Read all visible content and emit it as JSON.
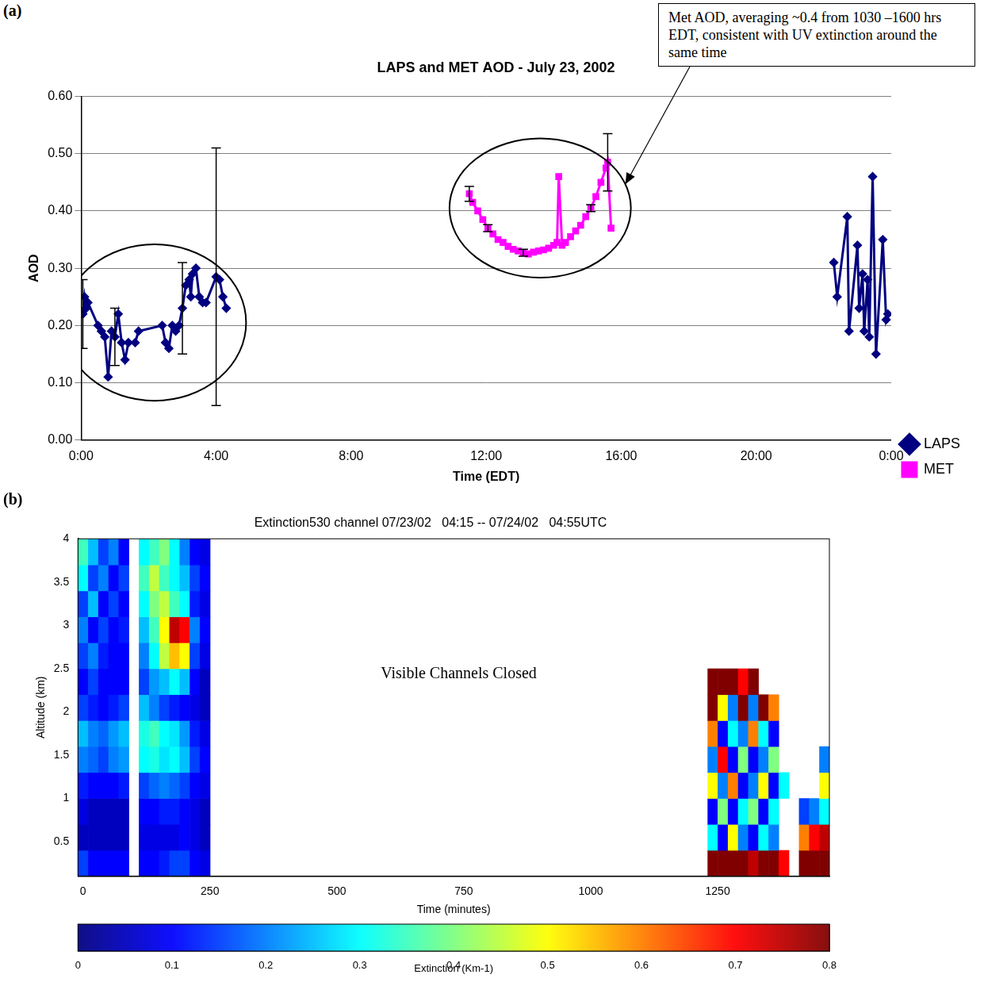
{
  "chart_data": [
    {
      "panel_label": "(a)",
      "type": "line",
      "title": "LAPS and MET AOD - July 23, 2002",
      "x_label": "Time (EDT)",
      "y_label": "AOD",
      "xlim": [
        0,
        24
      ],
      "xticks": [
        {
          "value": 0,
          "label": "0:00"
        },
        {
          "value": 4,
          "label": "4:00"
        },
        {
          "value": 8,
          "label": "8:00"
        },
        {
          "value": 12,
          "label": "12:00"
        },
        {
          "value": 16,
          "label": "16:00"
        },
        {
          "value": 20,
          "label": "20:00"
        },
        {
          "value": 24,
          "label": "0:00"
        }
      ],
      "ylim": [
        0,
        0.6
      ],
      "yticks": [
        {
          "value": 0,
          "label": "0.00"
        },
        {
          "value": 0.1,
          "label": "0.10"
        },
        {
          "value": 0.2,
          "label": "0.20"
        },
        {
          "value": 0.3,
          "label": "0.30"
        },
        {
          "value": 0.4,
          "label": "0.40"
        },
        {
          "value": 0.5,
          "label": "0.50"
        },
        {
          "value": 0.6,
          "label": "0.60"
        }
      ],
      "grid": "y",
      "legend": "right",
      "annotations": [
        "Met AOD, averaging ~0.4 from 1030 –1600 hrs EDT, consistent with UV extinction around the same time"
      ],
      "series": [
        {
          "name": "LAPS",
          "color": "#000080",
          "marker": "diamond",
          "x": [
            0.05,
            0.1,
            0.15,
            0.2,
            0.5,
            0.6,
            0.7,
            0.8,
            0.9,
            1.0,
            1.1,
            1.2,
            1.3,
            1.4,
            1.6,
            1.7,
            2.4,
            2.5,
            2.6,
            2.7,
            2.8,
            2.9,
            3.0,
            3.1,
            3.2,
            3.25,
            3.3,
            3.4,
            3.5,
            3.6,
            3.7,
            4.0,
            4.1,
            4.2,
            4.3,
            null,
            22.3,
            22.4,
            22.7,
            22.75,
            23.0,
            23.05,
            23.15,
            23.2,
            23.3,
            23.35,
            23.45,
            23.55,
            23.75,
            23.85,
            23.9
          ],
          "values": [
            0.22,
            0.25,
            0.23,
            0.24,
            0.2,
            0.19,
            0.18,
            0.11,
            0.19,
            0.18,
            0.22,
            0.17,
            0.14,
            0.17,
            0.17,
            0.19,
            0.2,
            0.17,
            0.16,
            0.2,
            0.19,
            0.2,
            0.23,
            0.27,
            0.28,
            0.25,
            0.29,
            0.3,
            0.25,
            0.24,
            0.24,
            0.285,
            0.28,
            0.25,
            0.23,
            null,
            0.31,
            0.25,
            0.39,
            0.19,
            0.34,
            0.23,
            0.29,
            0.19,
            0.28,
            0.18,
            0.46,
            0.15,
            0.35,
            0.21,
            0.22
          ],
          "errors": [
            0.06,
            null,
            null,
            null,
            null,
            null,
            null,
            null,
            null,
            0.05,
            null,
            null,
            null,
            null,
            null,
            null,
            null,
            null,
            null,
            null,
            null,
            null,
            0.08,
            null,
            null,
            null,
            null,
            null,
            null,
            null,
            null,
            0.225,
            null,
            null,
            null,
            null,
            null,
            null,
            null,
            null,
            null,
            null,
            null,
            null,
            null,
            null,
            null,
            null,
            null,
            null,
            null
          ]
        },
        {
          "name": "MET",
          "color": "#ff00ff",
          "marker": "square",
          "x": [
            11.5,
            11.6,
            11.75,
            11.9,
            12.05,
            12.2,
            12.35,
            12.5,
            12.65,
            12.8,
            12.95,
            13.1,
            13.25,
            13.4,
            13.55,
            13.7,
            13.85,
            14.0,
            14.1,
            14.15,
            14.25,
            14.35,
            14.5,
            14.65,
            14.8,
            14.95,
            15.1,
            15.25,
            15.4,
            15.55,
            15.6,
            15.7
          ],
          "values": [
            0.43,
            0.415,
            0.4,
            0.385,
            0.37,
            0.36,
            0.35,
            0.345,
            0.338,
            0.333,
            0.33,
            0.327,
            0.325,
            0.328,
            0.33,
            0.332,
            0.335,
            0.34,
            0.345,
            0.46,
            0.34,
            0.345,
            0.355,
            0.365,
            0.375,
            0.39,
            0.405,
            0.425,
            0.45,
            0.475,
            0.485,
            0.37
          ],
          "errors": [
            0.013,
            null,
            null,
            null,
            0.006,
            null,
            null,
            null,
            null,
            null,
            null,
            0.006,
            null,
            null,
            null,
            null,
            null,
            null,
            null,
            null,
            null,
            null,
            null,
            null,
            null,
            null,
            0.006,
            null,
            null,
            null,
            0.05,
            null
          ]
        }
      ]
    },
    {
      "panel_label": "(b)",
      "type": "heatmap",
      "title": "Extinction530 channel 07/23/02   04:15 -- 07/24/02   04:55UTC",
      "x_label": "Time (minutes)",
      "y_label": "Altitude (km)",
      "xlim": [
        -10,
        1470
      ],
      "xticks": [
        0,
        250,
        500,
        750,
        1000,
        1250
      ],
      "ylim": [
        0.1,
        4
      ],
      "yticks": [
        0.5,
        1,
        1.5,
        2,
        2.5,
        3,
        3.5,
        4
      ],
      "grid": false,
      "annotations": [
        "Visible Channels Closed"
      ],
      "time_edges": [
        -10,
        10,
        30,
        50,
        70,
        90,
        110,
        130,
        150,
        170,
        190,
        210,
        230,
        250,
        1230,
        1250,
        1270,
        1290,
        1310,
        1330,
        1350,
        1370,
        1390,
        1410,
        1430,
        1450,
        1470
      ],
      "altitude_edges": [
        0.1,
        0.4,
        0.7,
        1.0,
        1.3,
        1.6,
        1.9,
        2.2,
        2.5,
        2.8,
        3.1,
        3.4,
        3.7,
        4.0
      ],
      "cells": [
        [
          0.15,
          0.1,
          0.1,
          0.1,
          0.1,
          null,
          0.1,
          0.1,
          0.12,
          0.15,
          0.15,
          0.1,
          0.08,
          null,
          0.8,
          0.8,
          0.8,
          0.8,
          0.75,
          0.8,
          0.8,
          0.7,
          null,
          0.8,
          0.8,
          0.8
        ],
        [
          0.05,
          0.05,
          0.05,
          0.05,
          0.05,
          null,
          0.08,
          0.08,
          0.08,
          0.08,
          0.1,
          0.08,
          0.05,
          null,
          0.3,
          0.1,
          0.5,
          0.2,
          0.1,
          0.3,
          0.2,
          null,
          null,
          0.6,
          0.7,
          0.75
        ],
        [
          0.08,
          0.05,
          0.05,
          0.05,
          0.05,
          null,
          0.1,
          0.1,
          0.12,
          0.12,
          0.1,
          0.08,
          0.05,
          null,
          0.1,
          0.4,
          0.1,
          0.3,
          0.4,
          0.1,
          0.3,
          null,
          null,
          0.15,
          0.2,
          0.3
        ],
        [
          0.12,
          0.1,
          0.1,
          0.1,
          0.12,
          null,
          0.15,
          0.18,
          0.2,
          0.18,
          0.15,
          0.1,
          0.08,
          null,
          0.5,
          0.2,
          0.6,
          0.1,
          0.2,
          0.5,
          0.1,
          0.3,
          null,
          null,
          null,
          0.5
        ],
        [
          0.2,
          0.18,
          0.15,
          0.2,
          0.22,
          null,
          0.3,
          0.32,
          0.28,
          0.3,
          0.25,
          0.15,
          0.1,
          null,
          0.2,
          0.7,
          0.1,
          0.4,
          0.1,
          0.2,
          0.4,
          null,
          null,
          null,
          null,
          0.2
        ],
        [
          0.25,
          0.2,
          0.18,
          0.22,
          0.25,
          null,
          0.32,
          0.35,
          0.3,
          0.28,
          0.22,
          0.12,
          0.08,
          null,
          0.6,
          0.1,
          0.3,
          0.2,
          0.6,
          0.3,
          0.1,
          null,
          null,
          null,
          null,
          null
        ],
        [
          0.15,
          0.12,
          0.1,
          0.12,
          0.15,
          null,
          0.25,
          0.2,
          0.15,
          0.12,
          0.1,
          0.08,
          0.05,
          null,
          0.8,
          0.5,
          0.2,
          0.8,
          0.2,
          0.8,
          0.6,
          null,
          null,
          null,
          null,
          null
        ],
        [
          0.1,
          0.15,
          0.1,
          0.1,
          0.1,
          null,
          0.15,
          0.22,
          0.25,
          0.3,
          0.25,
          0.1,
          0.05,
          null,
          0.8,
          0.8,
          0.8,
          0.7,
          0.8,
          null,
          null,
          null,
          null,
          null,
          null,
          null
        ],
        [
          0.15,
          0.2,
          0.12,
          0.1,
          0.1,
          null,
          0.2,
          0.3,
          0.45,
          0.55,
          0.5,
          0.15,
          0.08,
          null,
          null,
          null,
          null,
          null,
          null,
          null,
          null,
          null,
          null,
          null,
          null,
          null
        ],
        [
          0.2,
          0.1,
          0.15,
          0.1,
          0.12,
          null,
          0.25,
          0.35,
          0.5,
          0.75,
          0.7,
          0.2,
          0.1,
          null,
          null,
          null,
          null,
          null,
          null,
          null,
          null,
          null,
          null,
          null,
          null,
          null
        ],
        [
          0.15,
          0.25,
          0.1,
          0.15,
          0.1,
          null,
          0.3,
          0.4,
          0.45,
          0.35,
          0.3,
          0.12,
          0.08,
          null,
          null,
          null,
          null,
          null,
          null,
          null,
          null,
          null,
          null,
          null,
          null,
          null
        ],
        [
          0.3,
          0.15,
          0.2,
          0.1,
          0.15,
          null,
          0.35,
          0.45,
          0.35,
          0.3,
          0.25,
          0.15,
          0.1,
          null,
          null,
          null,
          null,
          null,
          null,
          null,
          null,
          null,
          null,
          null,
          null,
          null
        ],
        [
          0.35,
          0.25,
          0.15,
          0.2,
          0.1,
          null,
          0.3,
          0.35,
          0.4,
          0.3,
          0.2,
          0.1,
          0.08,
          null,
          null,
          null,
          null,
          null,
          null,
          null,
          null,
          null,
          null,
          null,
          null,
          null
        ]
      ],
      "color_range": [
        0,
        0.8
      ],
      "color_ticks": [
        0,
        0.1,
        0.2,
        0.3,
        0.4,
        0.5,
        0.6,
        0.7,
        0.8
      ],
      "color_label": "Extinction (Km-1)"
    }
  ]
}
